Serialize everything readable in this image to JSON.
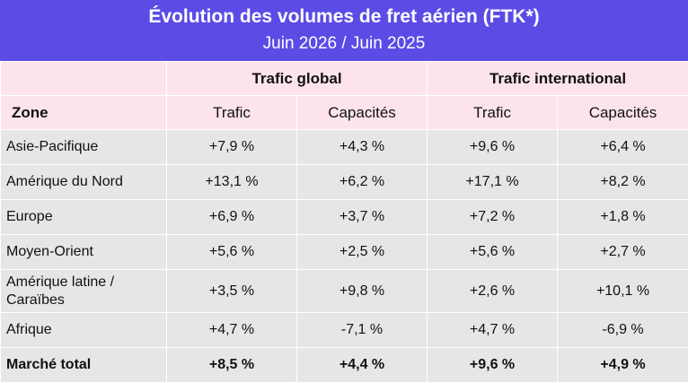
{
  "title": "Évolution des volumes de fret aérien (FTK*)",
  "subtitle": "Juin 2026 / Juin 2025",
  "groups": {
    "global": "Trafic global",
    "international": "Trafic international"
  },
  "columns": {
    "zone": "Zone",
    "global_traffic": "Trafic",
    "global_capacity": "Capacités",
    "intl_traffic": "Trafic",
    "intl_capacity": "Capacités"
  },
  "rows": [
    {
      "zone": "Asie-Pacifique",
      "global_traffic": "+7,9 %",
      "global_capacity": "+4,3 %",
      "intl_traffic": "+9,6 %",
      "intl_capacity": "+6,4 %"
    },
    {
      "zone": "Amérique du Nord",
      "global_traffic": "+13,1 %",
      "global_capacity": "+6,2 %",
      "intl_traffic": "+17,1 %",
      "intl_capacity": "+8,2 %"
    },
    {
      "zone": "Europe",
      "global_traffic": "+6,9 %",
      "global_capacity": "+3,7 %",
      "intl_traffic": "+7,2 %",
      "intl_capacity": "+1,8 %"
    },
    {
      "zone": "Moyen-Orient",
      "global_traffic": "+5,6 %",
      "global_capacity": "+2,5 %",
      "intl_traffic": "+5,6 %",
      "intl_capacity": "+2,7 %"
    },
    {
      "zone": "Amérique latine / Caraïbes",
      "global_traffic": "+3,5 %",
      "global_capacity": "+9,8 %",
      "intl_traffic": "+2,6 %",
      "intl_capacity": "+10,1 %"
    },
    {
      "zone": "Afrique",
      "global_traffic": "+4,7 %",
      "global_capacity": "-7,1 %",
      "intl_traffic": "+4,7 %",
      "intl_capacity": "-6,9 %"
    },
    {
      "zone": "Marché total",
      "global_traffic": "+8,5 %",
      "global_capacity": "+4,4 %",
      "intl_traffic": "+9,6 %",
      "intl_capacity": "+4,9 %"
    }
  ],
  "colors": {
    "title_background": "#5b4ce6",
    "header_background": "#fde4ea",
    "row_background": "#e6e6e6"
  }
}
